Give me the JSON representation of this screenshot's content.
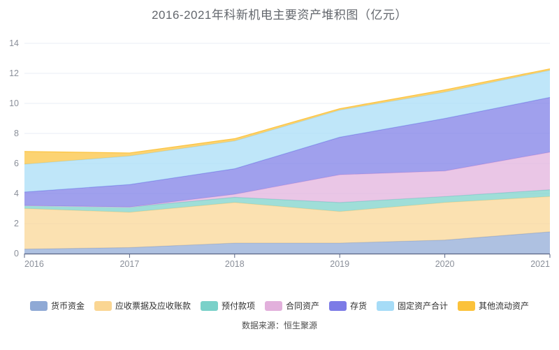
{
  "chart_data": {
    "type": "area",
    "stacked": true,
    "title": "2016-2021年科新机电主要资产堆积图（亿元）",
    "source": "数据来源：恒生聚源",
    "x": [
      "2016",
      "2017",
      "2018",
      "2019",
      "2020",
      "2021"
    ],
    "xlabel": "",
    "ylabel": "",
    "ylim": [
      0,
      14
    ],
    "ytick_step": 2,
    "grid": true,
    "legend_position": "bottom",
    "series": [
      {
        "name": "货币资金",
        "color": "#8FA9D5",
        "values": [
          0.3,
          0.4,
          0.7,
          0.7,
          0.9,
          1.45
        ]
      },
      {
        "name": "应收票据及应收账款",
        "color": "#FAD693",
        "values": [
          2.7,
          2.35,
          2.7,
          2.1,
          2.5,
          2.35
        ]
      },
      {
        "name": "预付款项",
        "color": "#7AD1C9",
        "values": [
          0.2,
          0.35,
          0.35,
          0.6,
          0.4,
          0.45
        ]
      },
      {
        "name": "合同资产",
        "color": "#E2B0DC",
        "values": [
          0.0,
          0.0,
          0.2,
          1.85,
          1.7,
          2.5
        ]
      },
      {
        "name": "存货",
        "color": "#7C7BE6",
        "values": [
          0.9,
          1.5,
          1.7,
          2.5,
          3.5,
          3.65
        ]
      },
      {
        "name": "固定资产合计",
        "color": "#A6DCF7",
        "values": [
          1.85,
          1.9,
          1.85,
          1.8,
          1.75,
          1.8
        ]
      },
      {
        "name": "其他流动资产",
        "color": "#FBC23B",
        "values": [
          0.85,
          0.2,
          0.15,
          0.1,
          0.15,
          0.1
        ]
      }
    ]
  },
  "style": {
    "axis_color": "#5A6584",
    "grid_color": "#E9EDF6",
    "tick_label_color": "#8A8F99",
    "fill_opacity": 0.72
  }
}
